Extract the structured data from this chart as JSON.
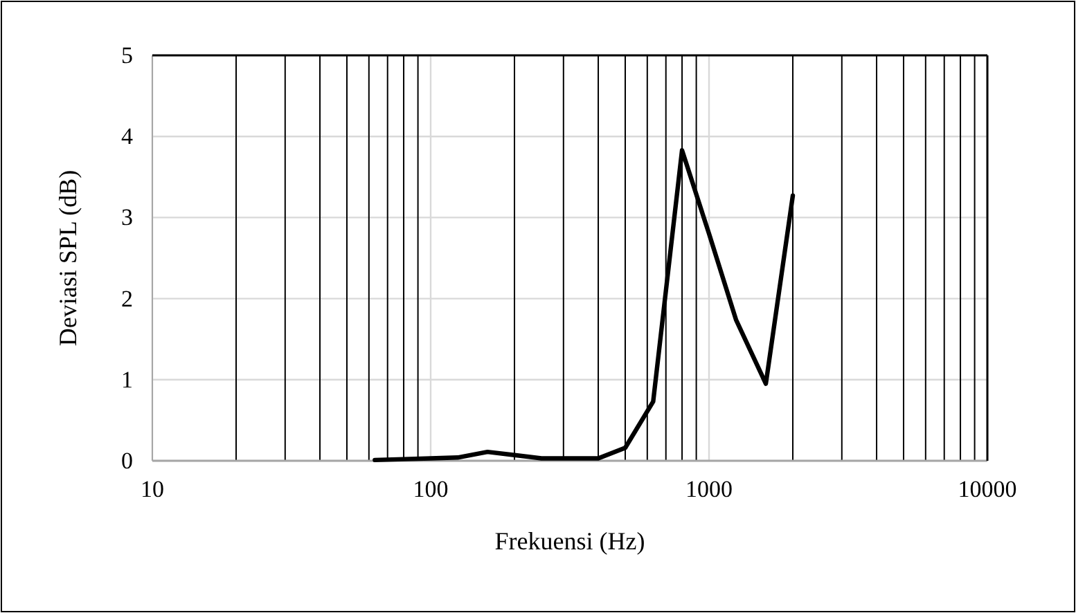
{
  "chart_data": {
    "type": "line",
    "xlabel": "Frekuensi (Hz)",
    "ylabel": "Deviasi SPL (dB)",
    "log": "x",
    "xlim": [
      10,
      10000
    ],
    "xticks": [
      10,
      {
        "value": 20,
        "label": null
      },
      {
        "value": 30,
        "label": null
      },
      {
        "value": 40,
        "label": null
      },
      {
        "value": 50,
        "label": null
      },
      {
        "value": 60,
        "label": null
      },
      {
        "value": 70,
        "label": null
      },
      {
        "value": 80,
        "label": null
      },
      {
        "value": 90,
        "label": null
      },
      100,
      {
        "value": 200,
        "label": null
      },
      {
        "value": 300,
        "label": null
      },
      {
        "value": 400,
        "label": null
      },
      {
        "value": 500,
        "label": null
      },
      {
        "value": 600,
        "label": null
      },
      {
        "value": 700,
        "label": null
      },
      {
        "value": 800,
        "label": null
      },
      {
        "value": 900,
        "label": null
      },
      1000,
      {
        "value": 2000,
        "label": null
      },
      {
        "value": 3000,
        "label": null
      },
      {
        "value": 4000,
        "label": null
      },
      {
        "value": 5000,
        "label": null
      },
      {
        "value": 6000,
        "label": null
      },
      {
        "value": 7000,
        "label": null
      },
      {
        "value": 8000,
        "label": null
      },
      {
        "value": 9000,
        "label": null
      },
      10000
    ],
    "ylim": [
      0,
      5
    ],
    "yticks": [
      0,
      1,
      2,
      3,
      4,
      5
    ],
    "grid": true,
    "marker": "none",
    "line_style": "solid",
    "x": [
      63,
      80,
      100,
      125,
      160,
      200,
      250,
      315,
      400,
      500,
      630,
      800,
      1000,
      1250,
      1600,
      2000
    ],
    "series": [
      {
        "color": "#000000",
        "values": [
          0.01,
          0.02,
          0.03,
          0.04,
          0.11,
          0.07,
          0.03,
          0.03,
          0.03,
          0.16,
          0.73,
          3.83,
          2.8,
          1.74,
          0.95,
          3.27
        ]
      }
    ]
  }
}
